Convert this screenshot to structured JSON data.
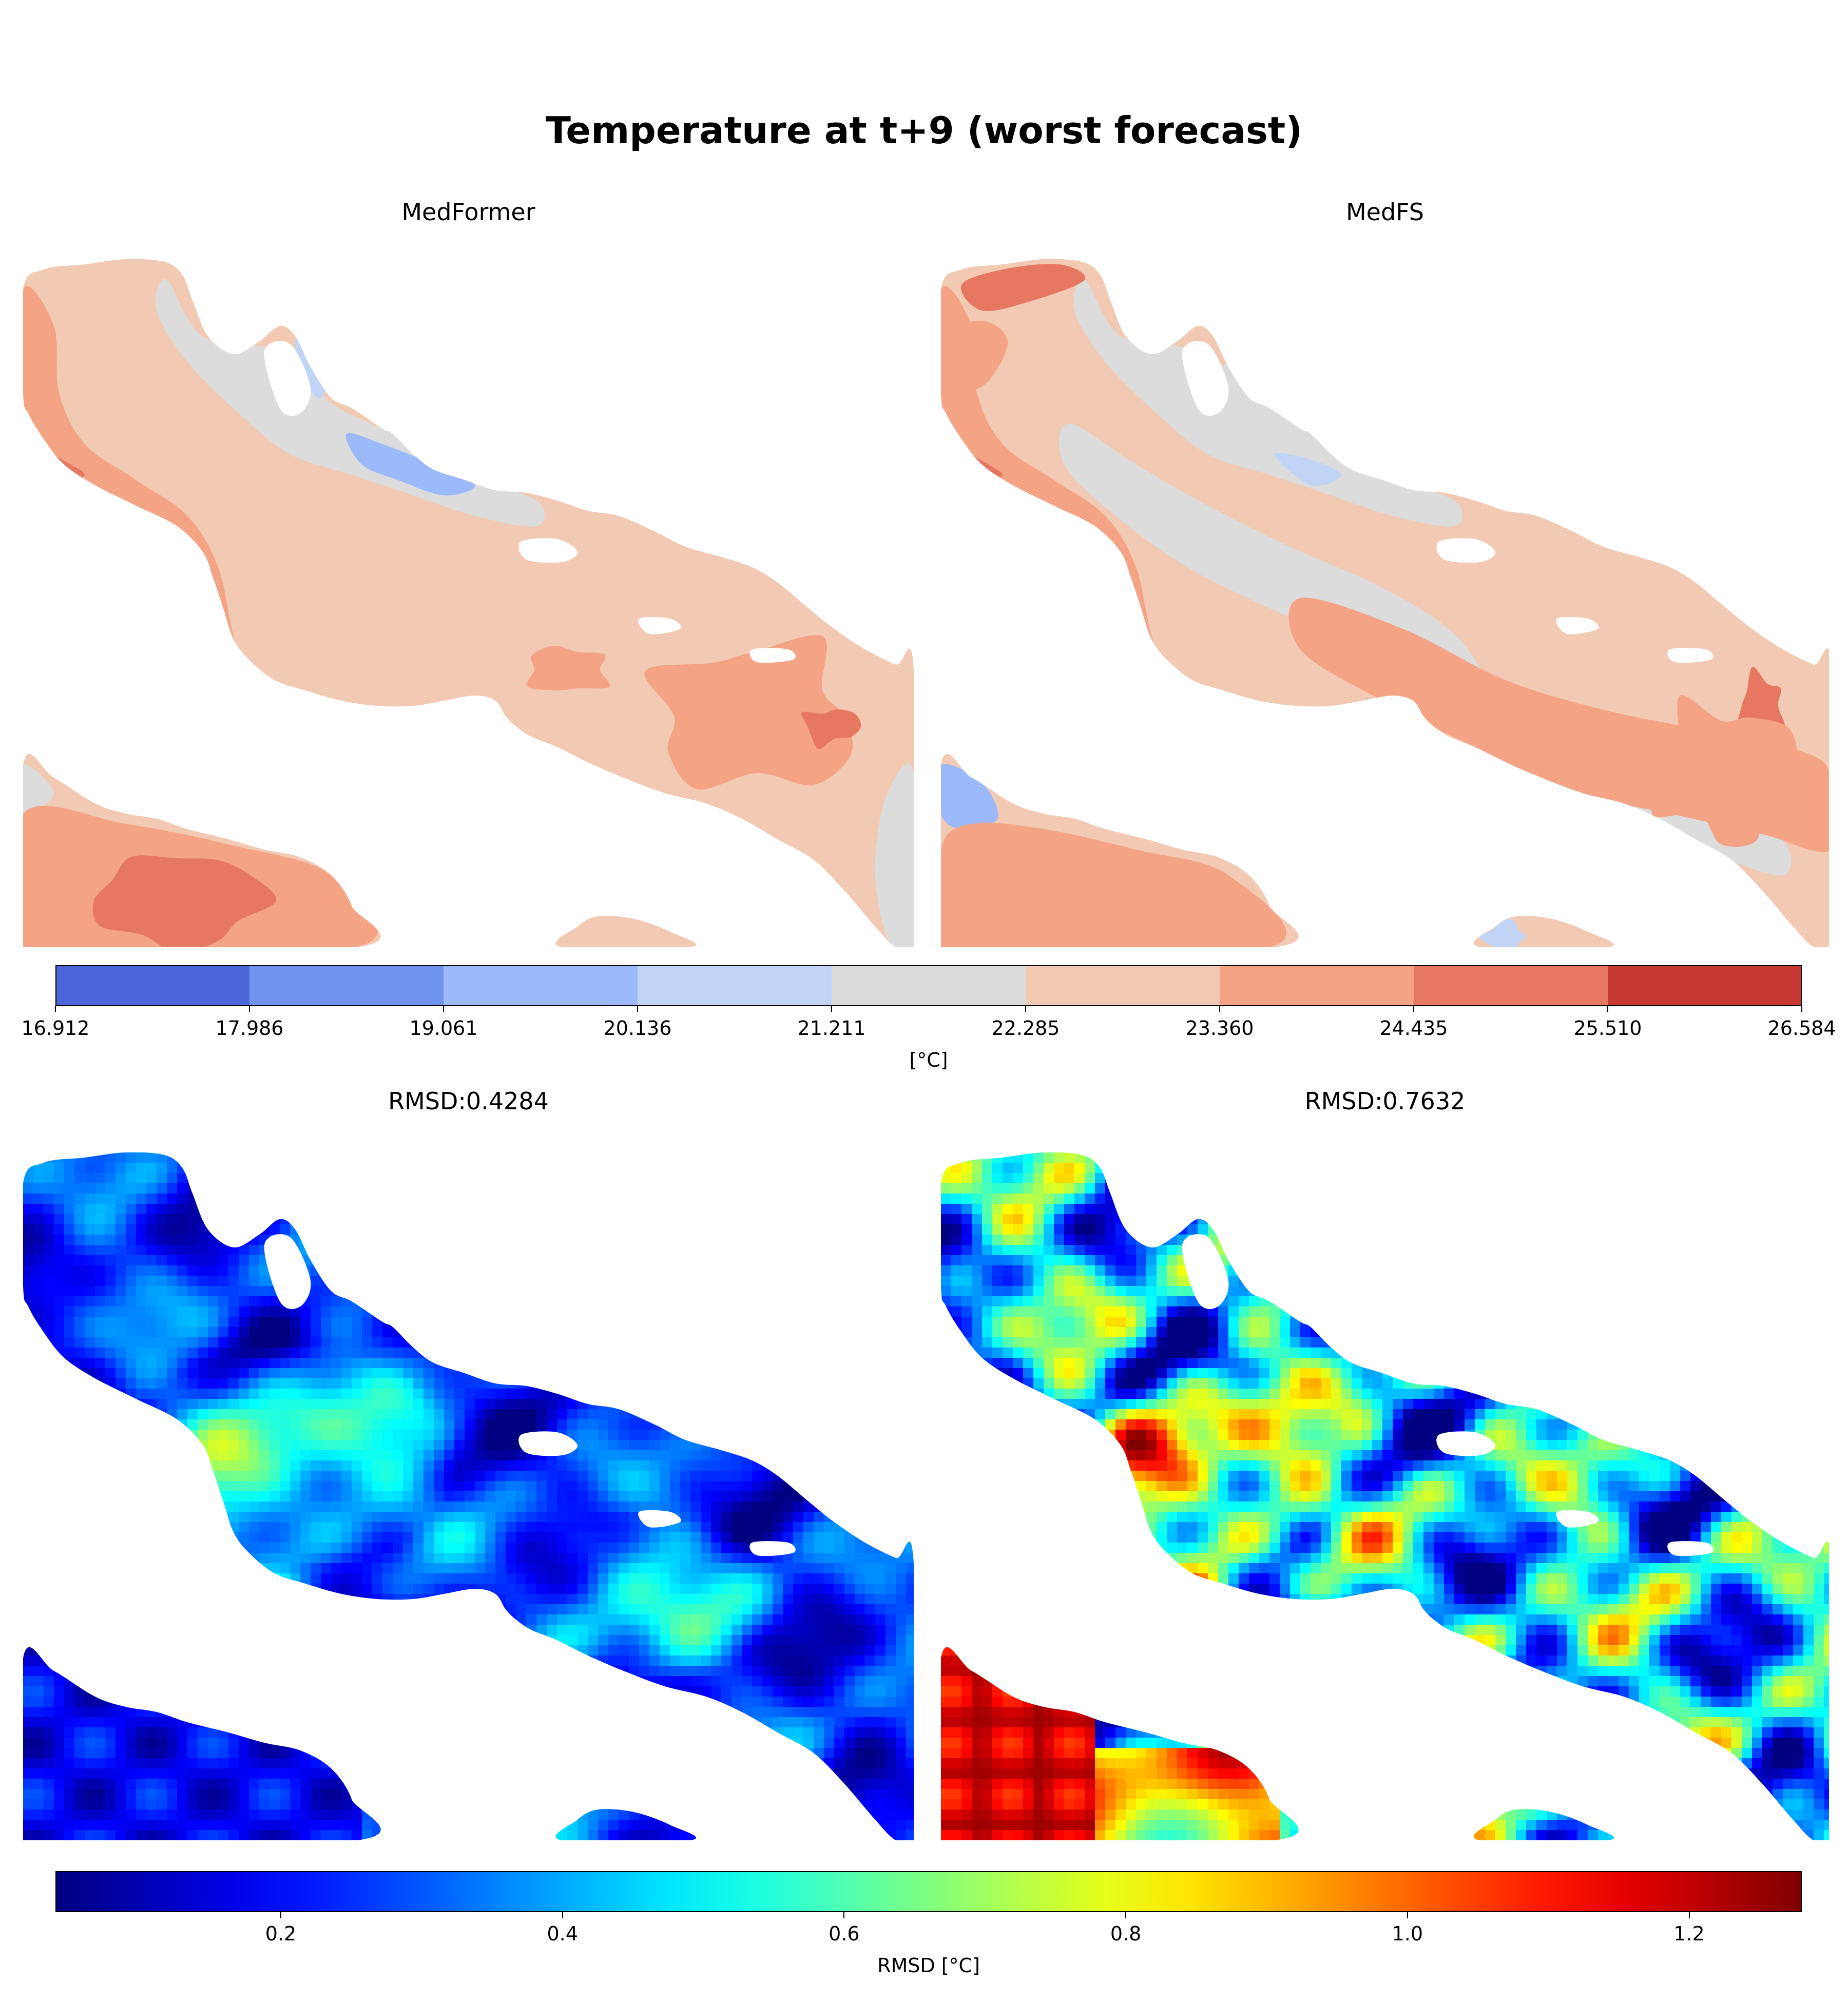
{
  "figure": {
    "title": "Temperature at t+9 (worst forecast)"
  },
  "colors": {
    "temperature_levels": [
      "#4b66d8",
      "#7093ee",
      "#9bb9fb",
      "#c0d4f6",
      "#dcdcdc",
      "#f2c9b2",
      "#f4a385",
      "#e67862",
      "#c73a33"
    ],
    "land": "#ffffff"
  },
  "chart_data": [
    {
      "type": "heatmap",
      "title": "MedFormer",
      "variable": "Temperature",
      "unit": "[°C]",
      "dominant_range": [
        22.285,
        24.435
      ]
    },
    {
      "type": "heatmap",
      "title": "MedFS",
      "variable": "Temperature",
      "unit": "[°C]",
      "dominant_range": [
        21.211,
        24.435
      ]
    },
    {
      "type": "heatmap",
      "title": "RMSD:0.4284",
      "variable": "RMSD",
      "rmsd": 0.4284,
      "unit": "RMSD [°C]"
    },
    {
      "type": "heatmap",
      "title": "RMSD:0.7632",
      "variable": "RMSD",
      "rmsd": 0.7632,
      "unit": "RMSD [°C]"
    }
  ],
  "colorbars": {
    "temperature": {
      "label": "[°C]",
      "ticks": [
        "16.912",
        "17.986",
        "19.061",
        "20.136",
        "21.211",
        "22.285",
        "23.360",
        "24.435",
        "25.510",
        "26.584"
      ],
      "range": [
        16.912,
        26.584
      ]
    },
    "rmsd": {
      "label": "RMSD [°C]",
      "ticks": [
        "0.2",
        "0.4",
        "0.6",
        "0.8",
        "1.0",
        "1.2"
      ],
      "tick_values": [
        0.2,
        0.4,
        0.6,
        0.8,
        1.0,
        1.2
      ],
      "range": [
        0.04,
        1.28
      ],
      "colormap": "jet"
    }
  }
}
